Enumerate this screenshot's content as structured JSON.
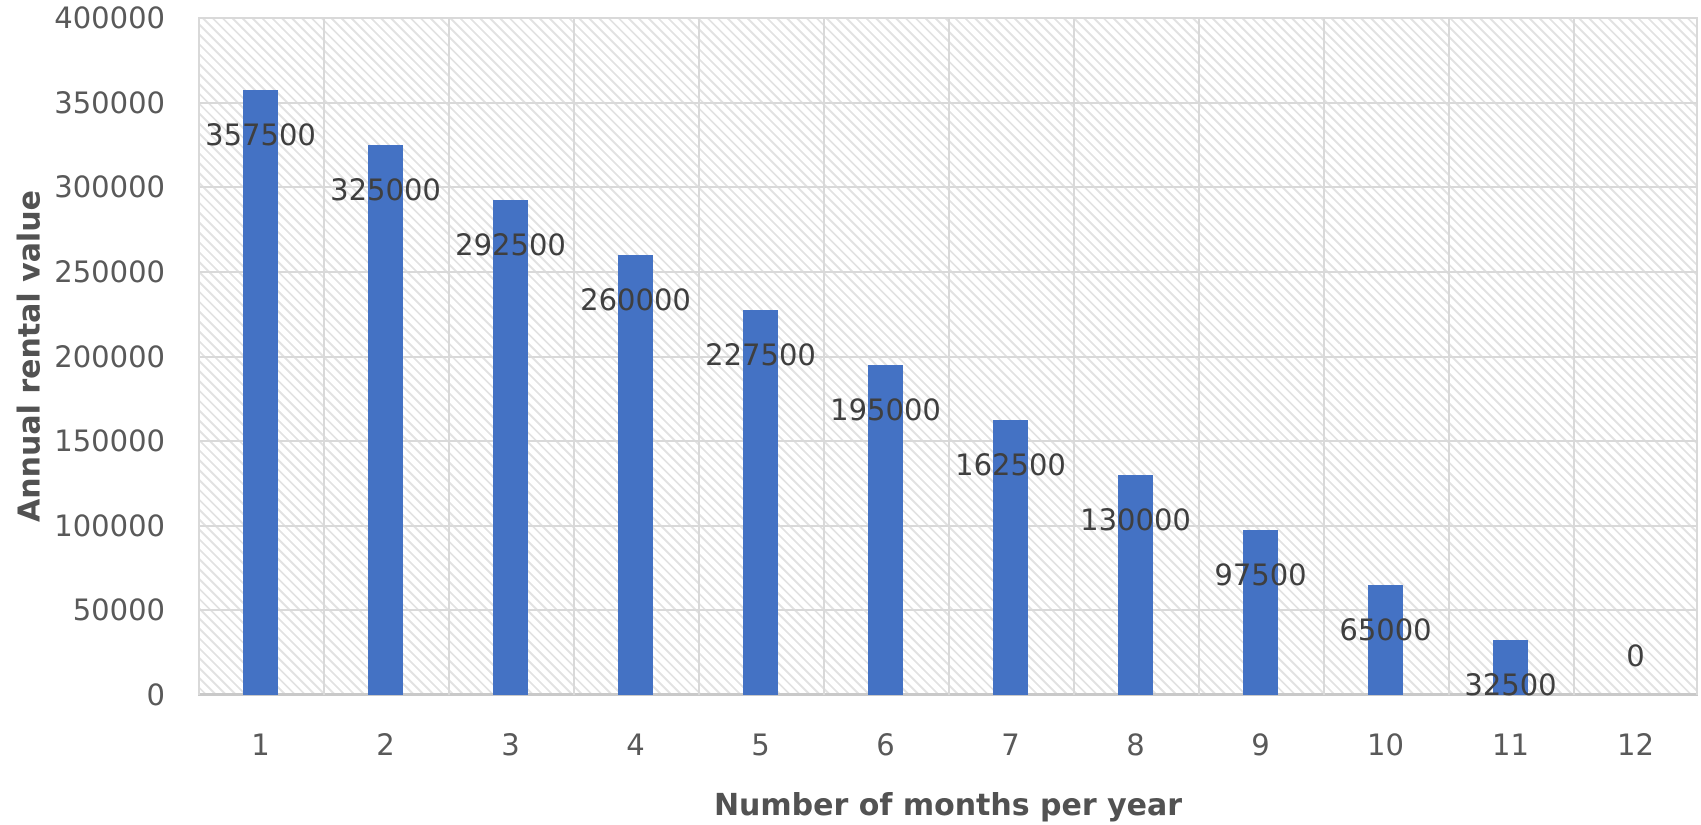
{
  "chart_data": {
    "type": "bar",
    "title": "",
    "xlabel": "Number of months per year",
    "ylabel": "Annual rental value",
    "categories": [
      "1",
      "2",
      "3",
      "4",
      "5",
      "6",
      "7",
      "8",
      "9",
      "10",
      "11",
      "12"
    ],
    "values": [
      357500,
      325000,
      292500,
      260000,
      227500,
      195000,
      162500,
      130000,
      97500,
      65000,
      32500,
      0
    ],
    "data_labels": [
      "357500",
      "325000",
      "292500",
      "260000",
      "227500",
      "195000",
      "162500",
      "130000",
      "97500",
      "65000",
      "32500",
      "0"
    ],
    "ylim": [
      0,
      400000
    ],
    "ytick_step": 50000,
    "yticks": [
      "400000",
      "350000",
      "300000",
      "250000",
      "200000",
      "150000",
      "100000",
      "50000",
      "0"
    ],
    "grid": "both",
    "legend": "none",
    "plot_area_fill": "diagonal-hatch",
    "colors": {
      "bar": "#4472C4",
      "gridline": "#d9d9d9",
      "axis_line": "#c9c9c9",
      "tick_label": "#595959",
      "data_label": "#3f3f3f",
      "axis_title": "#525252",
      "hatch_line": "#e2e2e2",
      "background": "#ffffff"
    }
  }
}
